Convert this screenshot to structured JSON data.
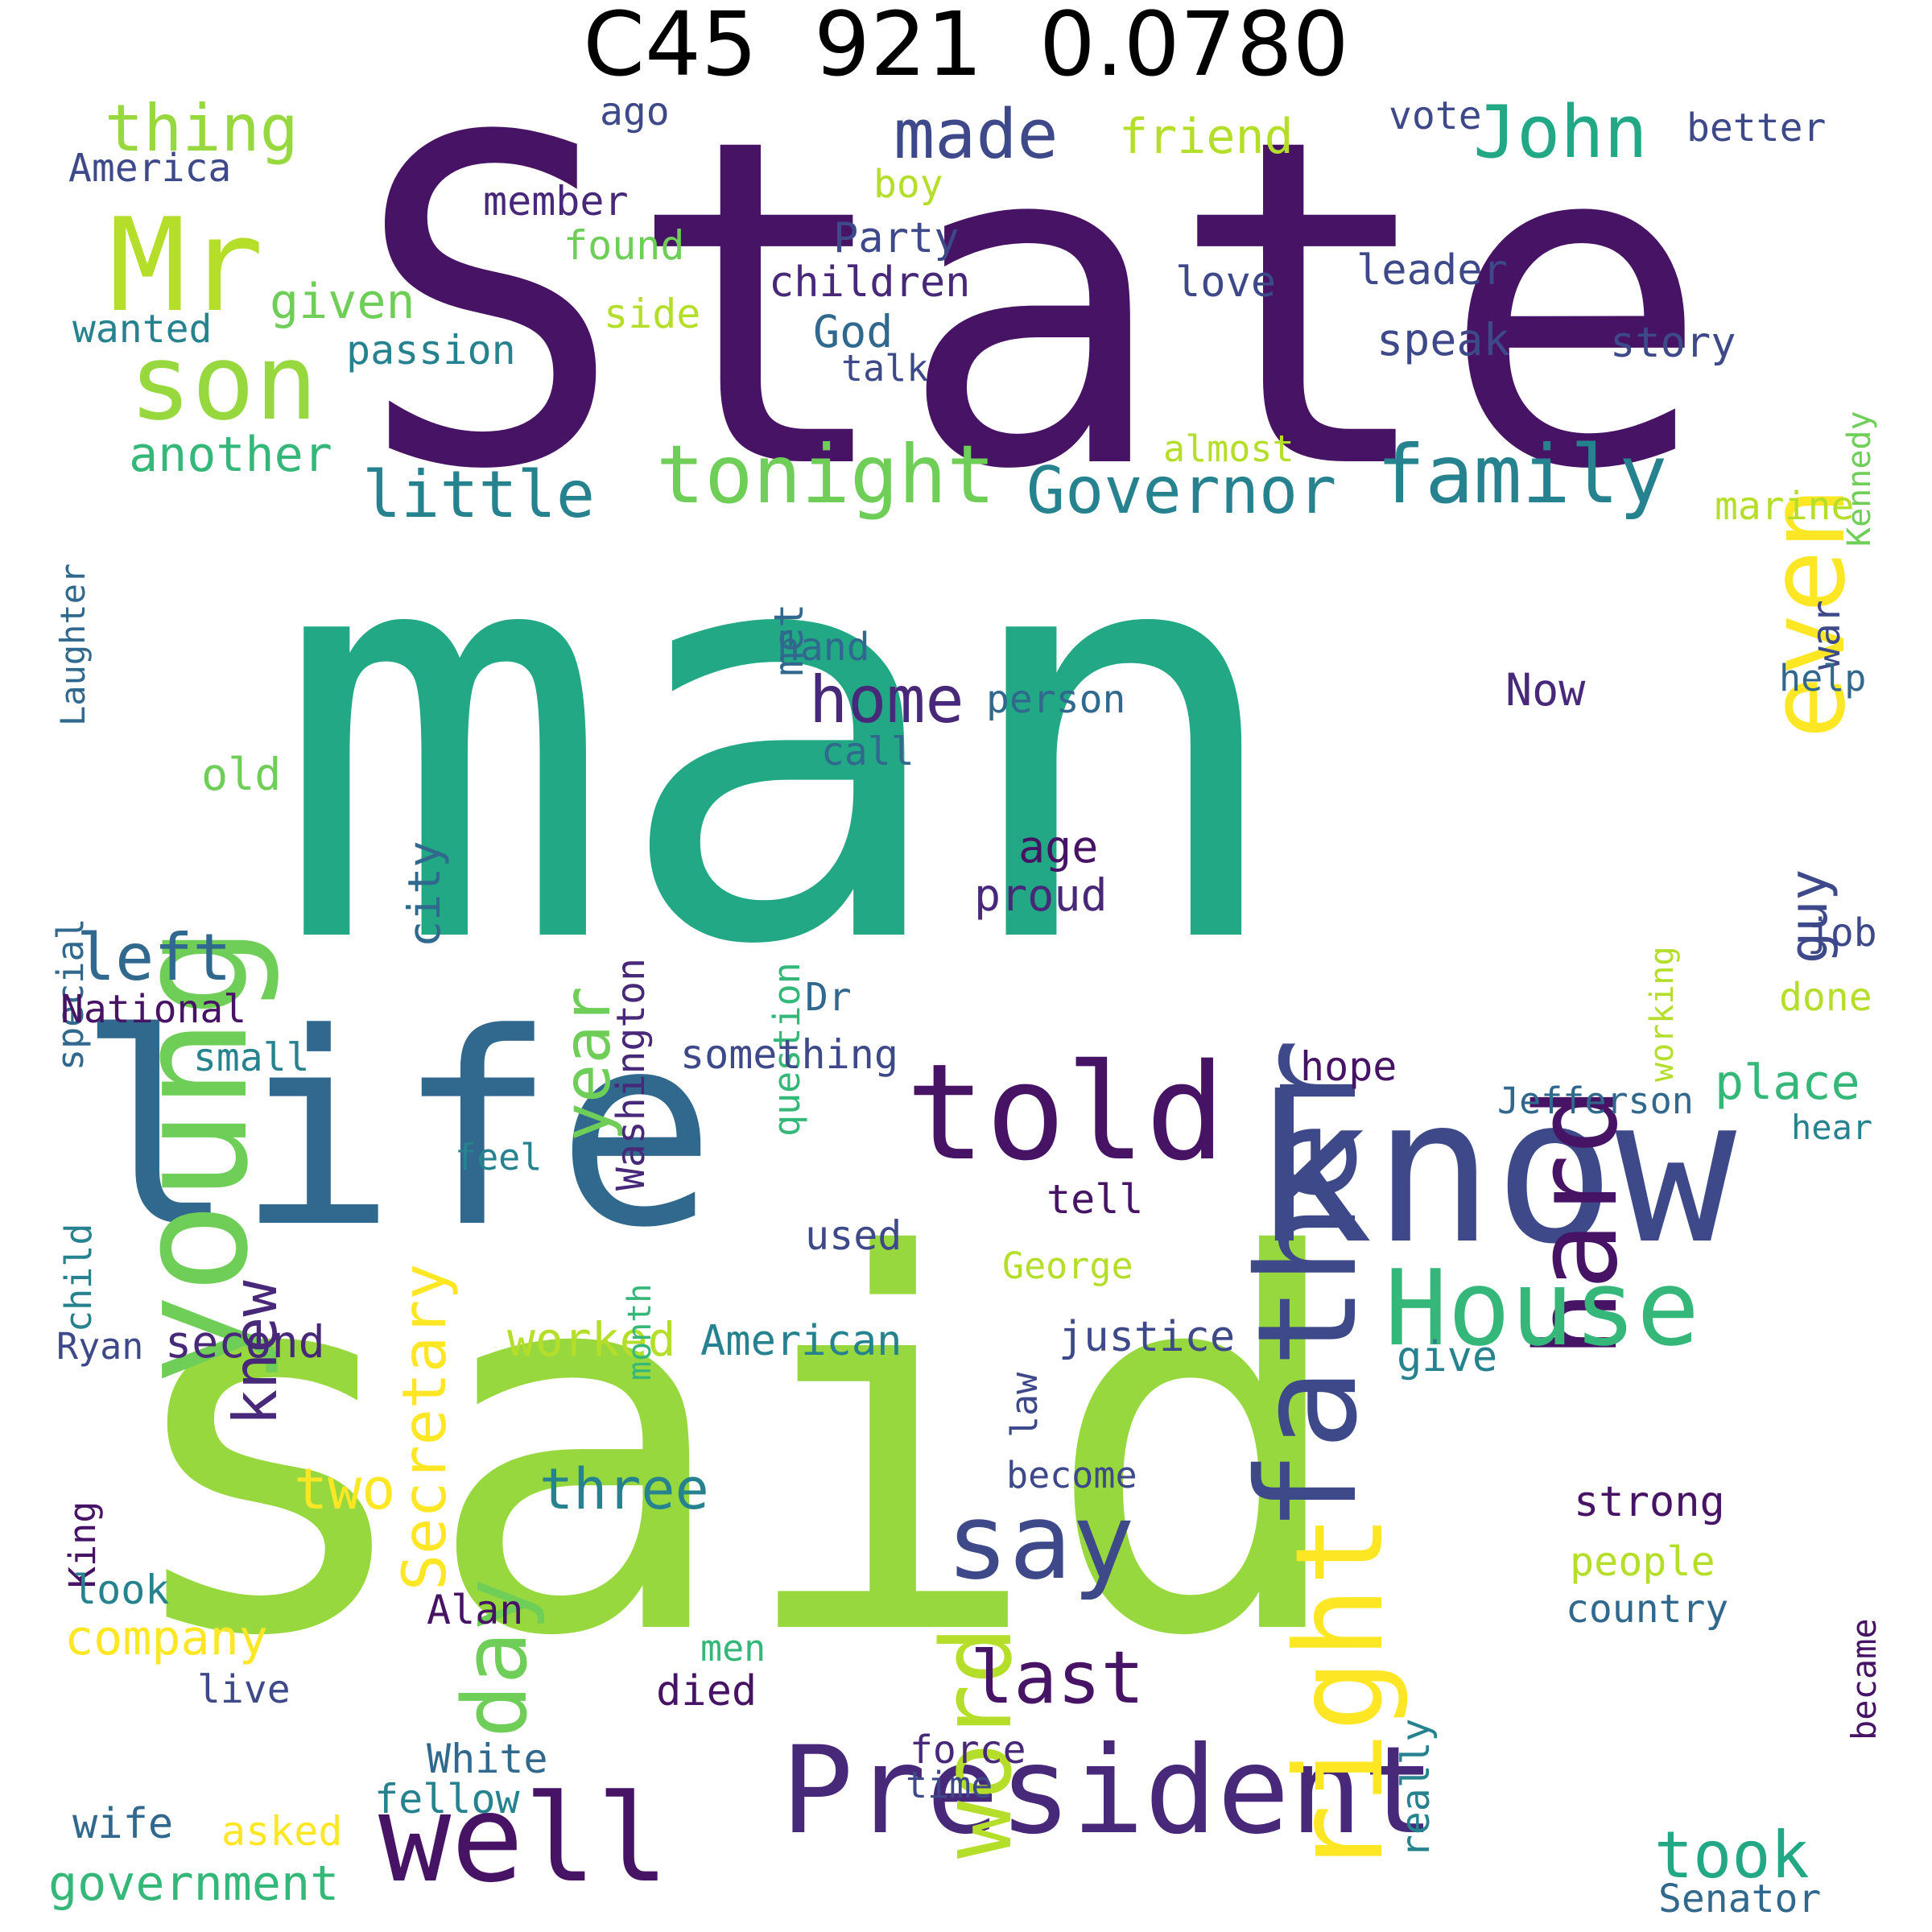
{
  "title": "C45  921  0.0780",
  "palette": {
    "violet": "#471365",
    "purple": "#482878",
    "indigo": "#3e4989",
    "blue": "#31688e",
    "teal": "#26828e",
    "green": "#22a884",
    "mint": "#35b779",
    "lime": "#6ece58",
    "yellowgreen": "#97d83f",
    "chartreuse": "#b5de2b",
    "yellow": "#fde725"
  },
  "words": [
    {
      "text": "State",
      "color": "#471365"
    },
    {
      "text": "man",
      "color": "#22a884"
    },
    {
      "text": "said",
      "color": "#97d83f"
    },
    {
      "text": "life",
      "color": "#31688e"
    },
    {
      "text": "know",
      "color": "#3e4989"
    },
    {
      "text": "young",
      "color": "#6ece58"
    },
    {
      "text": "Mr",
      "color": "#b5de2b"
    },
    {
      "text": "son",
      "color": "#97d83f"
    },
    {
      "text": "father",
      "color": "#3e4989"
    },
    {
      "text": "told",
      "color": "#471365"
    },
    {
      "text": "hard",
      "color": "#471365"
    },
    {
      "text": "even",
      "color": "#fde725"
    },
    {
      "text": "President",
      "color": "#482878"
    },
    {
      "text": "well",
      "color": "#471365"
    },
    {
      "text": "right",
      "color": "#fde725"
    },
    {
      "text": "House",
      "color": "#35b779"
    },
    {
      "text": "word",
      "color": "#b5de2b"
    },
    {
      "text": "say",
      "color": "#3e4989"
    },
    {
      "text": "day",
      "color": "#6ece58"
    },
    {
      "text": "tonight",
      "color": "#6ece58"
    },
    {
      "text": "family",
      "color": "#26828e"
    },
    {
      "text": "Governor",
      "color": "#26828e"
    },
    {
      "text": "little",
      "color": "#26828e"
    },
    {
      "text": "John",
      "color": "#22a884"
    },
    {
      "text": "made",
      "color": "#3e4989"
    },
    {
      "text": "thing",
      "color": "#97d83f"
    },
    {
      "text": "home",
      "color": "#482878"
    },
    {
      "text": "year",
      "color": "#6ece58"
    },
    {
      "text": "knew",
      "color": "#482878"
    },
    {
      "text": "left",
      "color": "#31688e"
    },
    {
      "text": "Secretary",
      "color": "#fde725"
    },
    {
      "text": "last",
      "color": "#471365"
    },
    {
      "text": "took",
      "color": "#22a884"
    },
    {
      "text": "three",
      "color": "#26828e"
    },
    {
      "text": "two",
      "color": "#fde725"
    },
    {
      "text": "guy",
      "color": "#3e4989"
    },
    {
      "text": "company",
      "color": "#fde725"
    },
    {
      "text": "government",
      "color": "#35b779"
    },
    {
      "text": "another",
      "color": "#35b779"
    },
    {
      "text": "given",
      "color": "#6ece58"
    },
    {
      "text": "friend",
      "color": "#b5de2b"
    },
    {
      "text": "city",
      "color": "#31688e"
    },
    {
      "text": "place",
      "color": "#35b779"
    },
    {
      "text": "worked",
      "color": "#b5de2b"
    },
    {
      "text": "American",
      "color": "#26828e"
    },
    {
      "text": "second",
      "color": "#482878"
    },
    {
      "text": "speak",
      "color": "#3e4989"
    },
    {
      "text": "God",
      "color": "#31688e"
    },
    {
      "text": "Now",
      "color": "#482878"
    },
    {
      "text": "justice",
      "color": "#3e4989"
    },
    {
      "text": "America",
      "color": "#3e4989"
    },
    {
      "text": "ago",
      "color": "#3e4989"
    },
    {
      "text": "vote",
      "color": "#3e4989"
    },
    {
      "text": "better",
      "color": "#3e4989"
    },
    {
      "text": "boy",
      "color": "#b5de2b"
    },
    {
      "text": "member",
      "color": "#482878"
    },
    {
      "text": "Party",
      "color": "#3e4989"
    },
    {
      "text": "found",
      "color": "#6ece58"
    },
    {
      "text": "children",
      "color": "#482878"
    },
    {
      "text": "love",
      "color": "#3e4989"
    },
    {
      "text": "leader",
      "color": "#3e4989"
    },
    {
      "text": "Kennedy",
      "color": "#6ece58"
    },
    {
      "text": "wanted",
      "color": "#26828e"
    },
    {
      "text": "side",
      "color": "#b5de2b"
    },
    {
      "text": "passion",
      "color": "#26828e"
    },
    {
      "text": "talk",
      "color": "#3e4989"
    },
    {
      "text": "story",
      "color": "#3e4989"
    },
    {
      "text": "almost",
      "color": "#b5de2b"
    },
    {
      "text": "Laughter",
      "color": "#31688e"
    },
    {
      "text": "marine",
      "color": "#b5de2b"
    },
    {
      "text": "met",
      "color": "#31688e"
    },
    {
      "text": "war",
      "color": "#3e4989"
    },
    {
      "text": "hand",
      "color": "#31688e"
    },
    {
      "text": "person",
      "color": "#31688e"
    },
    {
      "text": "help",
      "color": "#31688e"
    },
    {
      "text": "Washington",
      "color": "#482878"
    },
    {
      "text": "call",
      "color": "#31688e"
    },
    {
      "text": "old",
      "color": "#6ece58"
    },
    {
      "text": "question",
      "color": "#35b779"
    },
    {
      "text": "age",
      "color": "#471365"
    },
    {
      "text": "working",
      "color": "#b5de2b"
    },
    {
      "text": "special",
      "color": "#31688e"
    },
    {
      "text": "proud",
      "color": "#482878"
    },
    {
      "text": "job",
      "color": "#3e4989"
    },
    {
      "text": "National",
      "color": "#471365"
    },
    {
      "text": "Dr",
      "color": "#31688e"
    },
    {
      "text": "done",
      "color": "#b5de2b"
    },
    {
      "text": "small",
      "color": "#26828e"
    },
    {
      "text": "something",
      "color": "#3e4989"
    },
    {
      "text": "hope",
      "color": "#471365"
    },
    {
      "text": "Jefferson",
      "color": "#31688e"
    },
    {
      "text": "hear",
      "color": "#26828e"
    },
    {
      "text": "child",
      "color": "#26828e"
    },
    {
      "text": "feel",
      "color": "#26828e"
    },
    {
      "text": "tell",
      "color": "#471365"
    },
    {
      "text": "month",
      "color": "#35b779"
    },
    {
      "text": "used",
      "color": "#3e4989"
    },
    {
      "text": "George",
      "color": "#b5de2b"
    },
    {
      "text": "law",
      "color": "#3e4989"
    },
    {
      "text": "give",
      "color": "#26828e"
    },
    {
      "text": "Ryan",
      "color": "#3e4989"
    },
    {
      "text": "King",
      "color": "#471365"
    },
    {
      "text": "become",
      "color": "#3e4989"
    },
    {
      "text": "strong",
      "color": "#471365"
    },
    {
      "text": "really",
      "color": "#26828e"
    },
    {
      "text": "look",
      "color": "#26828e"
    },
    {
      "text": "Alan",
      "color": "#471365"
    },
    {
      "text": "people",
      "color": "#b5de2b"
    },
    {
      "text": "became",
      "color": "#471365"
    },
    {
      "text": "country",
      "color": "#31688e"
    },
    {
      "text": "men",
      "color": "#35b779"
    },
    {
      "text": "live",
      "color": "#3e4989"
    },
    {
      "text": "died",
      "color": "#471365"
    },
    {
      "text": "White",
      "color": "#31688e"
    },
    {
      "text": "force",
      "color": "#482878"
    },
    {
      "text": "time",
      "color": "#3e4989"
    },
    {
      "text": "fellow",
      "color": "#26828e"
    },
    {
      "text": "wife",
      "color": "#31688e"
    },
    {
      "text": "asked",
      "color": "#fde725"
    },
    {
      "text": "Senator",
      "color": "#31688e"
    }
  ]
}
